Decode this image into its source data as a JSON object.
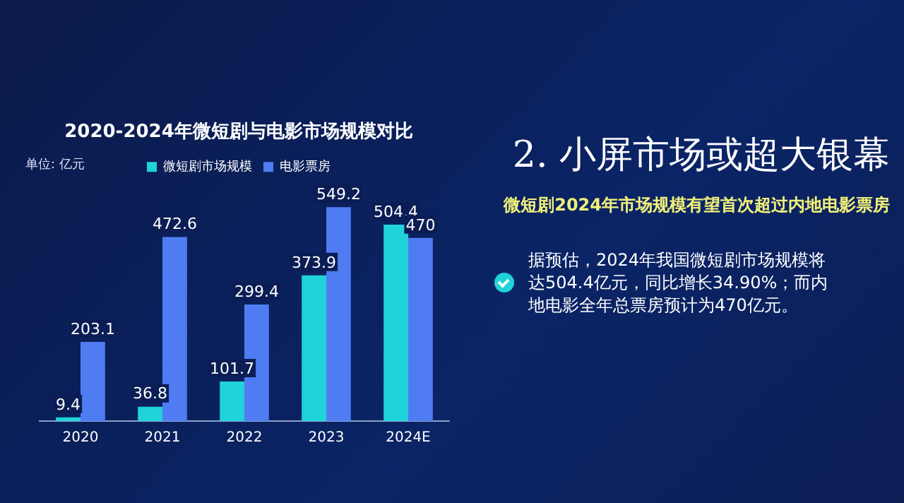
{
  "chart_data": [
    {
      "type": "bar",
      "title": "2020-2024年微短剧与电影市场规模对比",
      "annotations": [
        "单位: 亿元"
      ],
      "categories": [
        "2020",
        "2021",
        "2022",
        "2023",
        "2024E"
      ],
      "series": [
        {
          "name": "微短剧市场规模",
          "color": "#1fd3d8",
          "values": [
            9.4,
            36.8,
            101.7,
            373.9,
            504.4
          ]
        },
        {
          "name": "电影票房",
          "color": "#4f7cf3",
          "values": [
            203.1,
            472.6,
            299.4,
            549.2,
            470
          ]
        }
      ],
      "data_labels": true,
      "legend": "top",
      "grid": false,
      "relative": false
    },
    {
      "type": "other",
      "title": "2. 小屏市场或超大银幕",
      "subtitle": "微短剧2024年市场规模有望首次超过内地电影票房",
      "annotations": [
        "据预估，2024年我国微短剧市场规模将达504.4亿元，同比增长34.90%；而内地电影全年总票房预计为470亿元。"
      ]
    }
  ]
}
